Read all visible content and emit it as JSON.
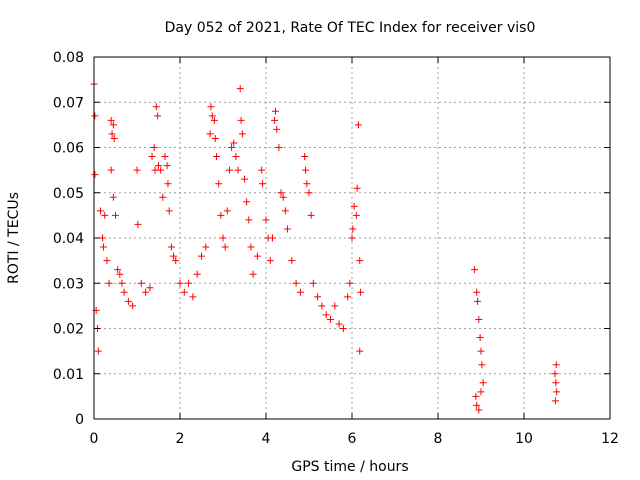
{
  "chart_data": {
    "type": "scatter",
    "title": "Day 052 of 2021, Rate Of TEC Index for receiver vis0",
    "xlabel": "GPS time / hours",
    "ylabel": "ROTI / TECUs",
    "xlim": [
      0,
      12
    ],
    "ylim": [
      0,
      0.08
    ],
    "x_ticks": [
      0,
      2,
      4,
      6,
      8,
      10,
      12
    ],
    "y_ticks": [
      0,
      0.01,
      0.02,
      0.03,
      0.04,
      0.05,
      0.06,
      0.07,
      0.08
    ],
    "x_tick_labels": [
      "0",
      "2",
      "4",
      "6",
      "8",
      "10",
      "12"
    ],
    "y_tick_labels": [
      "0",
      "0.01",
      "0.02",
      "0.03",
      "0.04",
      "0.05",
      "0.06",
      "0.07",
      "0.08"
    ],
    "grid": true,
    "legend": "none",
    "marker": "plus",
    "color": "#ff0000",
    "series": [
      {
        "values": [
          [
            0.0,
            0.074
          ],
          [
            0.02,
            0.067
          ],
          [
            0.02,
            0.054
          ],
          [
            0.05,
            0.024
          ],
          [
            0.08,
            0.02
          ],
          [
            0.1,
            0.015
          ],
          [
            0.15,
            0.046
          ],
          [
            0.2,
            0.04
          ],
          [
            0.22,
            0.038
          ],
          [
            0.25,
            0.045
          ],
          [
            0.3,
            0.035
          ],
          [
            0.35,
            0.03
          ],
          [
            0.4,
            0.066
          ],
          [
            0.42,
            0.063
          ],
          [
            0.45,
            0.065
          ],
          [
            0.47,
            0.062
          ],
          [
            0.4,
            0.055
          ],
          [
            0.45,
            0.049
          ],
          [
            0.5,
            0.045
          ],
          [
            0.55,
            0.033
          ],
          [
            0.6,
            0.032
          ],
          [
            0.65,
            0.03
          ],
          [
            0.7,
            0.028
          ],
          [
            0.8,
            0.026
          ],
          [
            0.9,
            0.025
          ],
          [
            1.0,
            0.055
          ],
          [
            1.02,
            0.043
          ],
          [
            1.1,
            0.03
          ],
          [
            1.2,
            0.028
          ],
          [
            1.3,
            0.029
          ],
          [
            1.35,
            0.058
          ],
          [
            1.4,
            0.06
          ],
          [
            1.42,
            0.055
          ],
          [
            1.45,
            0.069
          ],
          [
            1.48,
            0.067
          ],
          [
            1.5,
            0.056
          ],
          [
            1.55,
            0.055
          ],
          [
            1.6,
            0.049
          ],
          [
            1.65,
            0.058
          ],
          [
            1.7,
            0.056
          ],
          [
            1.72,
            0.052
          ],
          [
            1.75,
            0.046
          ],
          [
            1.8,
            0.038
          ],
          [
            1.85,
            0.036
          ],
          [
            1.9,
            0.035
          ],
          [
            2.0,
            0.03
          ],
          [
            2.1,
            0.028
          ],
          [
            2.2,
            0.03
          ],
          [
            2.3,
            0.027
          ],
          [
            2.4,
            0.032
          ],
          [
            2.5,
            0.036
          ],
          [
            2.6,
            0.038
          ],
          [
            2.7,
            0.063
          ],
          [
            2.72,
            0.069
          ],
          [
            2.75,
            0.067
          ],
          [
            2.8,
            0.066
          ],
          [
            2.82,
            0.062
          ],
          [
            2.85,
            0.058
          ],
          [
            2.9,
            0.052
          ],
          [
            2.95,
            0.045
          ],
          [
            3.0,
            0.04
          ],
          [
            3.05,
            0.038
          ],
          [
            3.1,
            0.046
          ],
          [
            3.15,
            0.055
          ],
          [
            3.2,
            0.06
          ],
          [
            3.25,
            0.061
          ],
          [
            3.3,
            0.058
          ],
          [
            3.35,
            0.055
          ],
          [
            3.4,
            0.073
          ],
          [
            3.42,
            0.066
          ],
          [
            3.45,
            0.063
          ],
          [
            3.5,
            0.053
          ],
          [
            3.55,
            0.048
          ],
          [
            3.6,
            0.044
          ],
          [
            3.65,
            0.038
          ],
          [
            3.7,
            0.032
          ],
          [
            3.8,
            0.036
          ],
          [
            3.9,
            0.055
          ],
          [
            3.92,
            0.052
          ],
          [
            4.0,
            0.044
          ],
          [
            4.05,
            0.04
          ],
          [
            4.1,
            0.035
          ],
          [
            4.15,
            0.04
          ],
          [
            4.2,
            0.066
          ],
          [
            4.22,
            0.068
          ],
          [
            4.25,
            0.064
          ],
          [
            4.3,
            0.06
          ],
          [
            4.35,
            0.05
          ],
          [
            4.4,
            0.049
          ],
          [
            4.45,
            0.046
          ],
          [
            4.5,
            0.042
          ],
          [
            4.6,
            0.035
          ],
          [
            4.7,
            0.03
          ],
          [
            4.8,
            0.028
          ],
          [
            4.9,
            0.058
          ],
          [
            4.92,
            0.055
          ],
          [
            4.95,
            0.052
          ],
          [
            5.0,
            0.05
          ],
          [
            5.05,
            0.045
          ],
          [
            5.1,
            0.03
          ],
          [
            5.2,
            0.027
          ],
          [
            5.3,
            0.025
          ],
          [
            5.4,
            0.023
          ],
          [
            5.5,
            0.022
          ],
          [
            5.6,
            0.025
          ],
          [
            5.7,
            0.021
          ],
          [
            5.8,
            0.02
          ],
          [
            5.9,
            0.027
          ],
          [
            5.95,
            0.03
          ],
          [
            6.0,
            0.04
          ],
          [
            6.02,
            0.042
          ],
          [
            6.05,
            0.047
          ],
          [
            6.1,
            0.045
          ],
          [
            6.12,
            0.051
          ],
          [
            6.15,
            0.065
          ],
          [
            6.18,
            0.035
          ],
          [
            6.2,
            0.028
          ],
          [
            6.18,
            0.015
          ],
          [
            8.85,
            0.033
          ],
          [
            8.9,
            0.028
          ],
          [
            8.92,
            0.026
          ],
          [
            8.95,
            0.022
          ],
          [
            8.98,
            0.018
          ],
          [
            9.0,
            0.015
          ],
          [
            9.02,
            0.012
          ],
          [
            9.05,
            0.008
          ],
          [
            8.88,
            0.005
          ],
          [
            8.9,
            0.003
          ],
          [
            8.95,
            0.002
          ],
          [
            9.0,
            0.006
          ],
          [
            10.75,
            0.012
          ],
          [
            10.72,
            0.01
          ],
          [
            10.74,
            0.008
          ],
          [
            10.76,
            0.006
          ],
          [
            10.73,
            0.004
          ]
        ]
      }
    ]
  }
}
